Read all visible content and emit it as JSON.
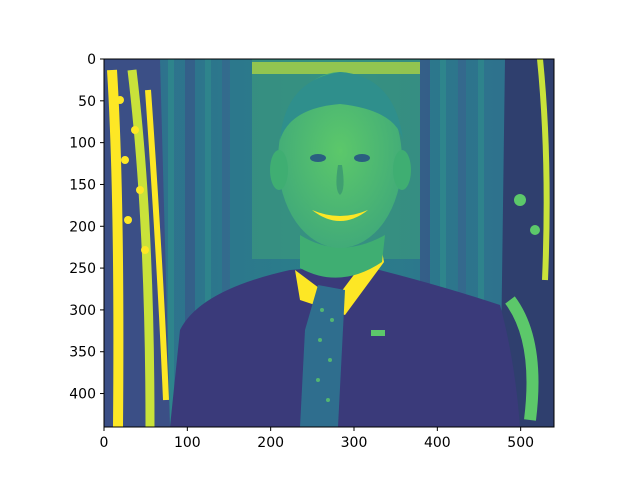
{
  "figure": {
    "image_description_icon": "viridis-portrait-image",
    "colormap": "viridis",
    "colors": {
      "dark": "#3b2f7a",
      "mid": "#2f8f8c",
      "green": "#3fb56e",
      "bright": "#c9e23a",
      "yellow": "#fde725",
      "suit": "#3a3a7a",
      "background": "#ffffff",
      "frame": "#000000"
    }
  },
  "chart_data": {
    "type": "heatmap",
    "title": "",
    "xlabel": "",
    "ylabel": "",
    "xlim": [
      0,
      540
    ],
    "ylim": [
      440,
      0
    ],
    "x_ticks": [
      "0",
      "100",
      "200",
      "300",
      "400",
      "500"
    ],
    "y_ticks": [
      "0",
      "50",
      "100",
      "150",
      "200",
      "250",
      "300",
      "350",
      "400"
    ],
    "x_tick_values": [
      0,
      100,
      200,
      300,
      400,
      500
    ],
    "y_tick_values": [
      0,
      50,
      100,
      150,
      200,
      250,
      300,
      350,
      400
    ],
    "grid": false,
    "legend": "none"
  }
}
